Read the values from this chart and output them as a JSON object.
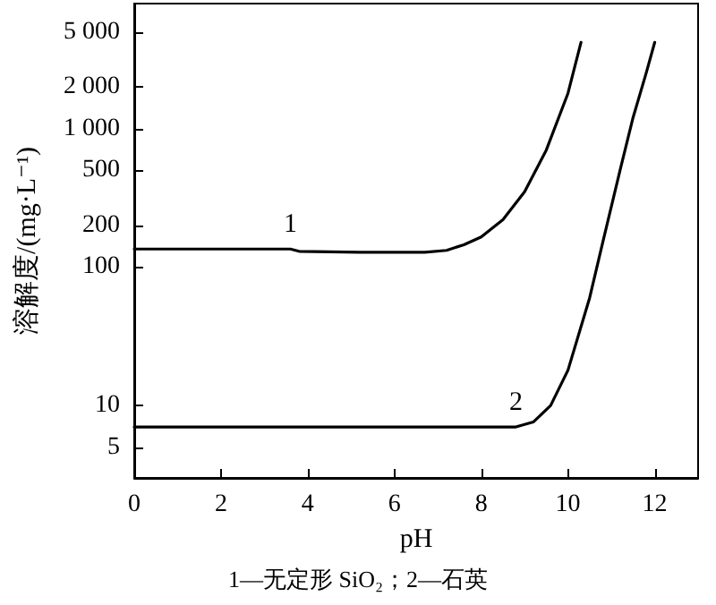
{
  "chart_data": {
    "type": "line",
    "xlabel": "pH",
    "ylabel": "溶解度/(mg·L⁻¹)",
    "log": "y",
    "marker": "none",
    "line_style": "solid",
    "xlim": [
      0,
      13
    ],
    "xticks": [
      0,
      2,
      4,
      6,
      8,
      10,
      12
    ],
    "ylim": [
      3,
      8000
    ],
    "yticks": [
      5,
      10,
      100,
      200,
      {
        "value": 500,
        "label": "500"
      },
      {
        "value": 1000,
        "label": "1 000"
      },
      {
        "value": 2000,
        "label": "2 000"
      },
      {
        "value": 5000,
        "label": "5 000"
      }
    ],
    "series": [
      {
        "name": "1",
        "color": "#000000",
        "x": [
          0,
          3.6,
          3.8,
          5.2,
          6.7,
          7.2,
          7.6,
          8,
          8.5,
          9,
          9.5,
          10,
          10.3
        ],
        "values": [
          135,
          135,
          130,
          128,
          128,
          132,
          145,
          165,
          220,
          350,
          700,
          1800,
          4200
        ]
      },
      {
        "name": "2",
        "color": "#000000",
        "x": [
          0,
          8.8,
          9.2,
          9.6,
          10,
          10.5,
          10.8,
          11.2,
          11.5,
          11.8,
          12
        ],
        "values": [
          7,
          7,
          7.6,
          10,
          18,
          60,
          150,
          500,
          1200,
          2500,
          4200
        ]
      }
    ],
    "annotations": [
      "1—无定形 SiO₂；2—石英"
    ]
  }
}
